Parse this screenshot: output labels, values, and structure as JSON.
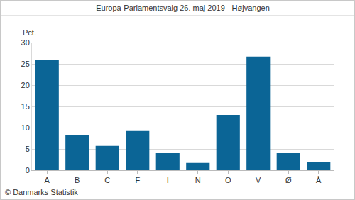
{
  "chart_data": {
    "type": "bar",
    "title": "Europa-Parlamentsvalg 26. maj 2019 - Højvangen",
    "ylabel": "Pct.",
    "annotations": [
      "© Danmarks Statistik"
    ],
    "categories": [
      "A",
      "B",
      "C",
      "F",
      "I",
      "N",
      "O",
      "V",
      "Ø",
      "Å"
    ],
    "values": [
      26.0,
      8.3,
      5.7,
      9.2,
      4.0,
      1.7,
      13.0,
      26.7,
      4.0,
      1.9
    ],
    "color": "#0b6596",
    "ylim": [
      0,
      30
    ],
    "yticks": [
      0,
      5,
      10,
      15,
      20,
      25,
      30
    ],
    "grid": true
  }
}
